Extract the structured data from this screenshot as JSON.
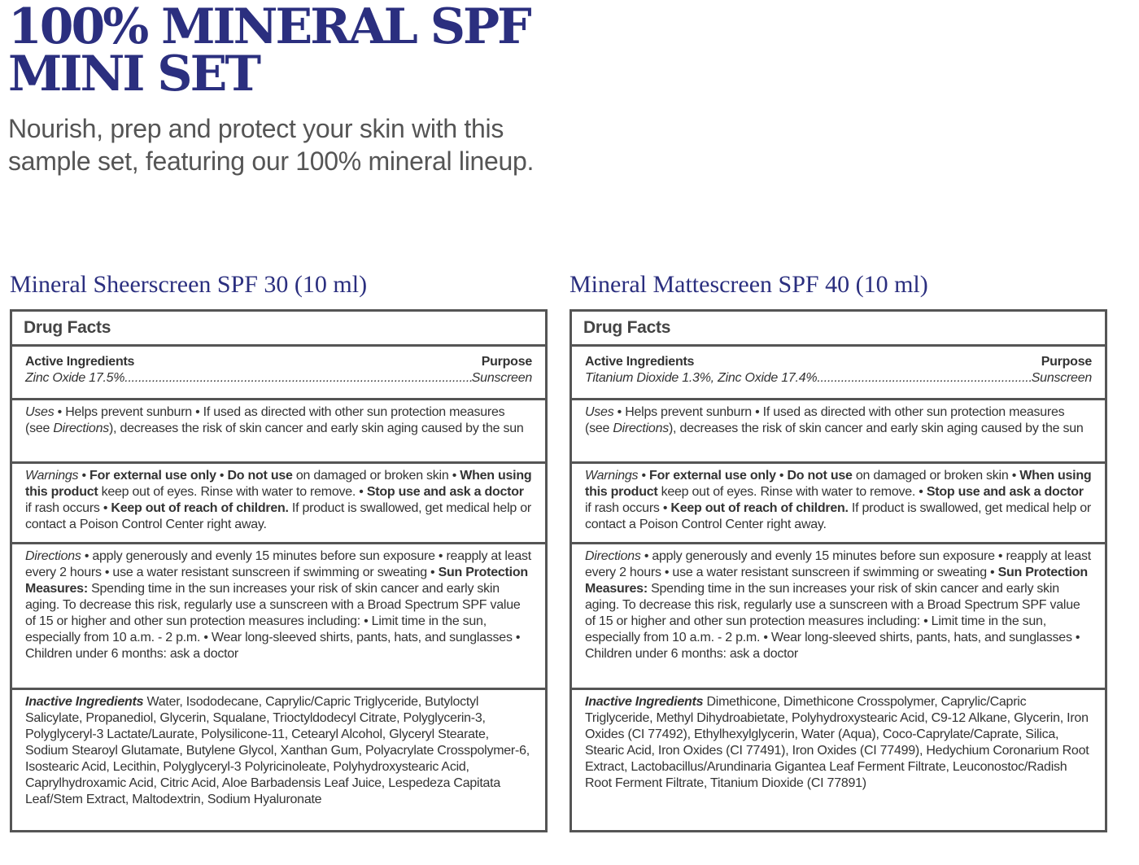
{
  "header": {
    "title_line1": "100% MINERAL SPF",
    "title_line2": "MINI SET",
    "subtitle_line1": "Nourish, prep and protect your skin with this",
    "subtitle_line2": "sample set, featuring our 100% mineral lineup."
  },
  "colors": {
    "brand": "#2b2f7f",
    "border": "#555555"
  },
  "products": [
    {
      "name": "Mineral Sheerscreen SPF 30 (10 ml)",
      "drug_facts": "Drug Facts",
      "active_label": "Active Ingredients",
      "purpose_label": "Purpose",
      "active": "Zinc Oxide 17.5%",
      "purpose": "Sunscreen",
      "sections": [
        [
          {
            "s": "i",
            "t": "Uses"
          },
          {
            "s": "n",
            "t": " • Helps prevent sunburn • If used as directed with other sun protection measures (see "
          },
          {
            "s": "i",
            "t": "Directions"
          },
          {
            "s": "n",
            "t": "), decreases the risk of skin cancer and early skin aging caused by the sun"
          }
        ],
        [
          {
            "s": "i",
            "t": "Warnings"
          },
          {
            "s": "n",
            "t": " • "
          },
          {
            "s": "b",
            "t": "For external use only"
          },
          {
            "s": "n",
            "t": " • "
          },
          {
            "s": "b",
            "t": "Do not use"
          },
          {
            "s": "n",
            "t": " on damaged or broken skin • "
          },
          {
            "s": "b",
            "t": "When using this product"
          },
          {
            "s": "n",
            "t": " keep out of eyes. Rinse with water to remove. • "
          },
          {
            "s": "b",
            "t": "Stop use and ask a doctor"
          },
          {
            "s": "n",
            "t": " if rash occurs • "
          },
          {
            "s": "b",
            "t": "Keep out of reach of children."
          },
          {
            "s": "n",
            "t": " If product is swallowed, get medical help or contact a Poison Control Center right away."
          }
        ],
        [
          {
            "s": "i",
            "t": "Directions"
          },
          {
            "s": "n",
            "t": " • apply generously and evenly 15 minutes before sun exposure • reapply at least every 2 hours • use a water resistant sunscreen if swimming or sweating • "
          },
          {
            "s": "b",
            "t": "Sun Protection Measures:"
          },
          {
            "s": "n",
            "t": " Spending time in the sun increases your risk of skin cancer and early skin aging. To decrease this risk, regularly use a sunscreen with a Broad Spectrum SPF value of 15 or higher and other sun protection measures including: • Limit time in the sun, especially from 10 a.m. - 2 p.m. • Wear long-sleeved shirts, pants, hats, and sunglasses • Children under 6 months: ask a doctor"
          }
        ],
        [
          {
            "s": "bi",
            "t": "Inactive Ingredients"
          },
          {
            "s": "n",
            "t": " Water, Isododecane, Caprylic/Capric Triglyceride, Butyloctyl Salicylate, Propanediol, Glycerin, Squalane, Trioctyldodecyl Citrate, Polyglycerin-3, Polyglyceryl-3 Lactate/Laurate, Polysilicone-11, Cetearyl Alcohol, Glyceryl Stearate, Sodium Stearoyl Glutamate, Butylene Glycol, Xanthan Gum, Polyacrylate Crosspolymer-6, Isostearic Acid, Lecithin, Polyglyceryl-3 Polyricinoleate, Polyhydroxystearic Acid, Caprylhydroxamic Acid, Citric Acid, Aloe Barbadensis Leaf Juice, Lespedeza Capitata Leaf/Stem Extract, Maltodextrin, Sodium Hyaluronate"
          }
        ]
      ]
    },
    {
      "name": "Mineral Mattescreen SPF 40 (10 ml)",
      "drug_facts": "Drug Facts",
      "active_label": "Active Ingredients",
      "purpose_label": "Purpose",
      "active": "Titanium Dioxide 1.3%, Zinc Oxide 17.4%",
      "purpose": "Sunscreen",
      "sections": [
        [
          {
            "s": "i",
            "t": "Uses"
          },
          {
            "s": "n",
            "t": " • Helps prevent sunburn • If used as directed with other sun protection measures (see "
          },
          {
            "s": "i",
            "t": "Directions"
          },
          {
            "s": "n",
            "t": "), decreases the risk of skin cancer and early skin aging caused by the sun"
          }
        ],
        [
          {
            "s": "i",
            "t": "Warnings"
          },
          {
            "s": "n",
            "t": " • "
          },
          {
            "s": "b",
            "t": "For external use only"
          },
          {
            "s": "n",
            "t": " • "
          },
          {
            "s": "b",
            "t": "Do not use"
          },
          {
            "s": "n",
            "t": " on damaged or broken skin • "
          },
          {
            "s": "b",
            "t": "When using this product"
          },
          {
            "s": "n",
            "t": " keep out of eyes. Rinse with water to remove. • "
          },
          {
            "s": "b",
            "t": "Stop use and ask a doctor"
          },
          {
            "s": "n",
            "t": " if rash occurs • "
          },
          {
            "s": "b",
            "t": "Keep out of reach of children."
          },
          {
            "s": "n",
            "t": " If product is swallowed, get medical help or contact a Poison Control Center right away."
          }
        ],
        [
          {
            "s": "i",
            "t": "Directions"
          },
          {
            "s": "n",
            "t": " • apply generously and evenly 15 minutes before sun exposure • reapply at least every 2 hours • use a water resistant sunscreen if swimming or sweating • "
          },
          {
            "s": "b",
            "t": "Sun Protection Measures:"
          },
          {
            "s": "n",
            "t": " Spending time in the sun increases your risk of skin cancer and early skin aging. To decrease this risk, regularly use a sunscreen with a Broad Spectrum SPF value of 15 or higher and other sun protection measures including: • Limit time in the sun, especially from 10 a.m. - 2 p.m. • Wear long-sleeved shirts, pants, hats, and sunglasses • Children under 6 months: ask a doctor"
          }
        ],
        [
          {
            "s": "bi",
            "t": "Inactive Ingredients"
          },
          {
            "s": "n",
            "t": " Dimethicone, Dimethicone Crosspolymer, Caprylic/Capric Triglyceride, Methyl Dihydroabietate, Polyhydroxystearic Acid, C9-12 Alkane, Glycerin, Iron Oxides (CI 77492), Ethylhexylglycerin, Water (Aqua), Coco-Caprylate/Caprate, Silica, Stearic Acid, Iron Oxides (CI  77491), Iron Oxides (CI  77499), Hedychium Coronarium Root Extract, Lactobacillus/Arundinaria Gigantea Leaf Ferment Filtrate, Leuconostoc/Radish Root Ferment Filtrate, Titanium Dioxide (CI  77891)"
          }
        ]
      ]
    }
  ]
}
